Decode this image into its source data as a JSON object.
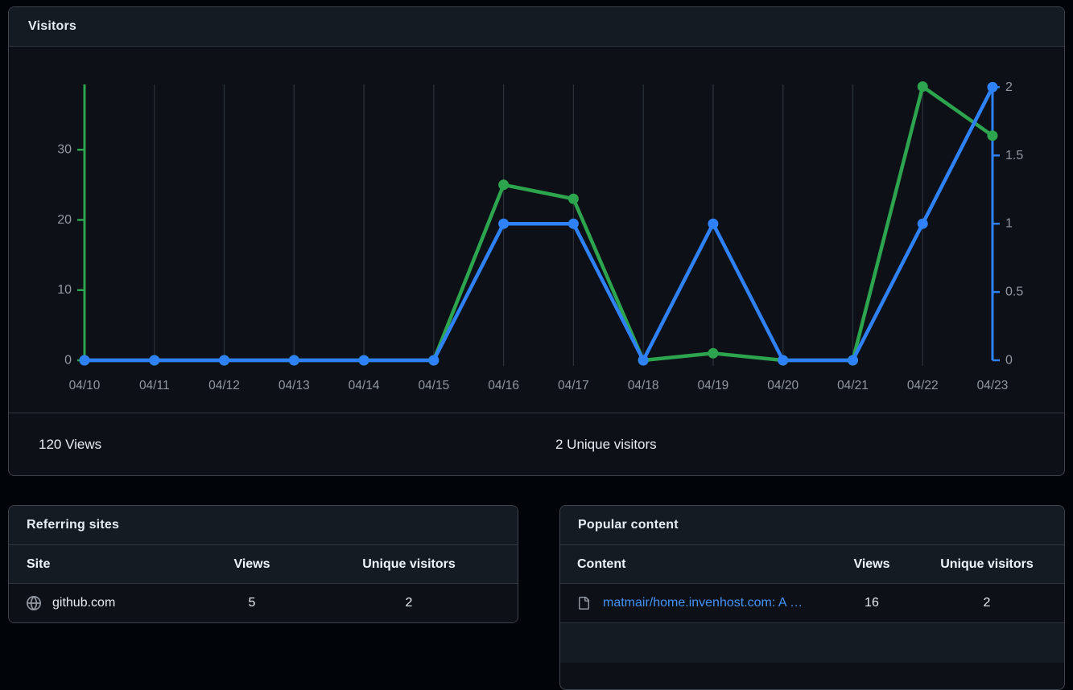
{
  "visitors_panel": {
    "title": "Visitors",
    "footer": {
      "views_total": "120 Views",
      "unique_total": "2 Unique visitors"
    }
  },
  "chart_data": {
    "type": "line",
    "title": "Visitors",
    "x": [
      "04/10",
      "04/11",
      "04/12",
      "04/13",
      "04/14",
      "04/15",
      "04/16",
      "04/17",
      "04/18",
      "04/19",
      "04/20",
      "04/21",
      "04/22",
      "04/23"
    ],
    "series": [
      {
        "name": "Views",
        "axis": "left",
        "color": "#2da44e",
        "values": [
          0,
          0,
          0,
          0,
          0,
          0,
          25,
          23,
          0,
          1,
          0,
          0,
          39,
          32
        ],
        "total_label": "120 Views"
      },
      {
        "name": "Unique visitors",
        "axis": "right",
        "color": "#2f81f7",
        "values": [
          0,
          0,
          0,
          0,
          0,
          0,
          1,
          1,
          0,
          1,
          0,
          0,
          1,
          2
        ],
        "total_label": "2 Unique visitors"
      }
    ],
    "left_axis": {
      "color": "#2da44e",
      "ticks": [
        0,
        10,
        20,
        30
      ],
      "tick_labels": [
        "0",
        "10",
        "20",
        "30"
      ],
      "plot_max": 39.3
    },
    "right_axis": {
      "color": "#2f81f7",
      "ticks": [
        0,
        0.5,
        1,
        1.5,
        2
      ],
      "tick_labels": [
        "0",
        "0.5",
        "1",
        "1.5",
        "2"
      ],
      "plot_max": 2.02
    },
    "grid": true,
    "grid_color": "#2d333b",
    "label_color": "#9198a1",
    "legend": "none"
  },
  "referring_sites": {
    "title": "Referring sites",
    "columns": {
      "site": "Site",
      "views": "Views",
      "unique": "Unique visitors"
    },
    "rows": [
      {
        "site": "github.com",
        "views": "5",
        "unique": "2",
        "icon": "globe-icon"
      }
    ]
  },
  "popular_content": {
    "title": "Popular content",
    "columns": {
      "content": "Content",
      "views": "Views",
      "unique": "Unique visitors"
    },
    "rows": [
      {
        "content": "matmair/home.invenhost.com: A …",
        "views": "16",
        "unique": "2",
        "icon": "file-icon"
      }
    ]
  }
}
